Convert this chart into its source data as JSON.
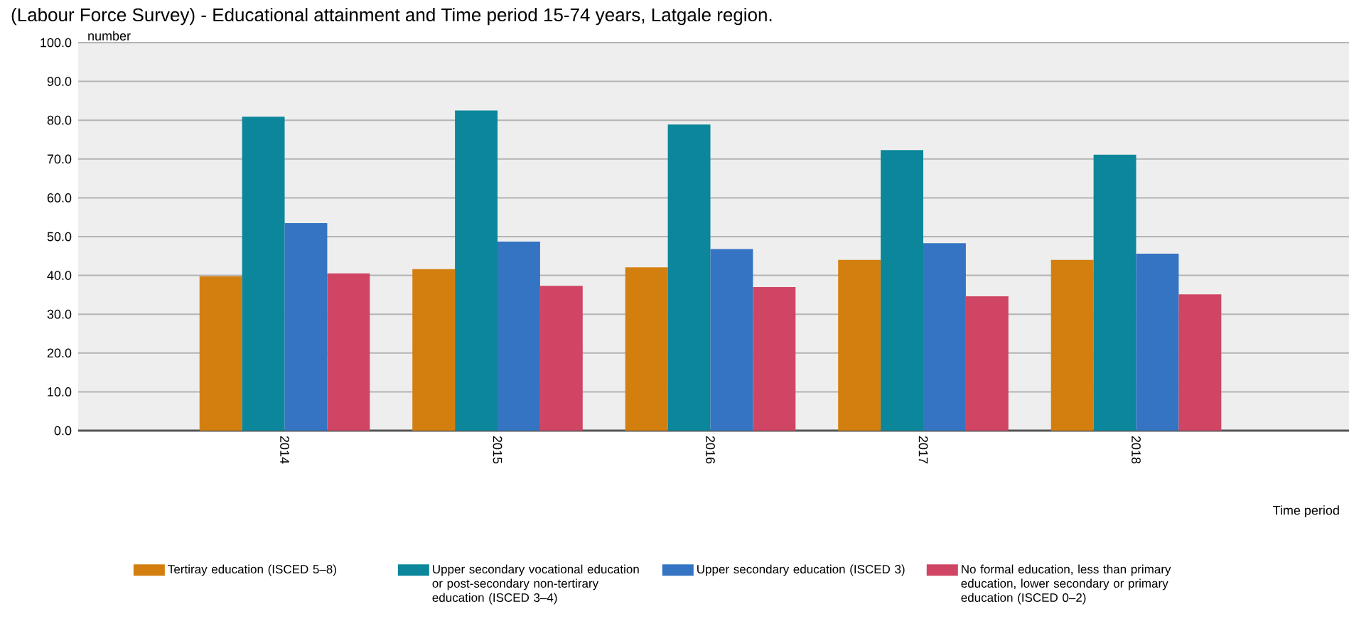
{
  "chart_data": {
    "type": "bar",
    "title": "(Labour Force Survey) - Educational attainment and Time period 15-74 years, Latgale region.",
    "categories": [
      "2014",
      "2015",
      "2016",
      "2017",
      "2018"
    ],
    "xlabel": "Time period",
    "ylabel": "number",
    "series": [
      {
        "name": "Tertiray education (ISCED 5–8)",
        "color": "#d37f0f",
        "values": [
          39.8,
          41.6,
          42.1,
          44.0,
          44.0
        ]
      },
      {
        "name": "Upper secondary vocational education or post-secondary non-tertirary education (ISCED 3–4)",
        "color": "#0b869b",
        "values": [
          80.9,
          82.5,
          78.9,
          72.3,
          71.1
        ]
      },
      {
        "name": "Upper secondary education (ISCED 3)",
        "color": "#3474c3",
        "values": [
          53.5,
          48.7,
          46.8,
          48.3,
          45.6
        ]
      },
      {
        "name": "No formal education, less than primary education, lower secondary or primary education (ISCED 0–2)",
        "color": "#cf4563",
        "values": [
          40.5,
          37.3,
          37.0,
          34.6,
          35.1
        ]
      }
    ],
    "ylim": [
      0,
      100
    ],
    "yticks": [
      {
        "value": 0,
        "label": "0.0"
      },
      {
        "value": 10,
        "label": "10.0"
      },
      {
        "value": 20,
        "label": "20.0"
      },
      {
        "value": 30,
        "label": "30.0"
      },
      {
        "value": 40,
        "label": "40.0"
      },
      {
        "value": 50,
        "label": "50.0"
      },
      {
        "value": 60,
        "label": "60.0"
      },
      {
        "value": 70,
        "label": "70.0"
      },
      {
        "value": 80,
        "label": "80.0"
      },
      {
        "value": 90,
        "label": "90.0"
      },
      {
        "value": 100,
        "label": "100.0"
      }
    ],
    "grid": "y",
    "legend": "bottom"
  }
}
